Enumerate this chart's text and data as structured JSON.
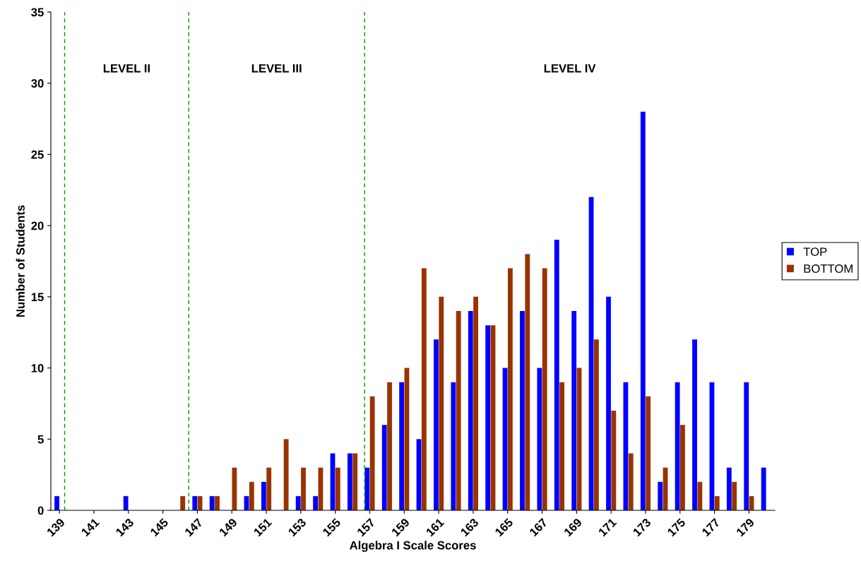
{
  "chart_data": {
    "type": "bar",
    "xlabel": "Algebra I Scale Scores",
    "ylabel": "Number of Students",
    "x": [
      139,
      140,
      141,
      142,
      143,
      144,
      145,
      146,
      147,
      148,
      149,
      150,
      151,
      152,
      153,
      154,
      155,
      156,
      157,
      158,
      159,
      160,
      161,
      162,
      163,
      164,
      165,
      166,
      167,
      168,
      169,
      170,
      171,
      172,
      173,
      174,
      175,
      176,
      177,
      178,
      179,
      180
    ],
    "series": [
      {
        "name": "TOP",
        "color": "#0000ff",
        "values": [
          1,
          0,
          0,
          0,
          1,
          0,
          0,
          0,
          1,
          1,
          0,
          1,
          2,
          0,
          1,
          1,
          4,
          4,
          3,
          6,
          9,
          5,
          12,
          9,
          14,
          13,
          10,
          14,
          10,
          19,
          14,
          22,
          15,
          9,
          28,
          2,
          9,
          12,
          9,
          3,
          9,
          3
        ]
      },
      {
        "name": "BOTTOM",
        "color": "#993300",
        "values": [
          0,
          0,
          0,
          0,
          0,
          0,
          0,
          1,
          1,
          1,
          3,
          2,
          3,
          5,
          3,
          3,
          3,
          4,
          8,
          9,
          10,
          17,
          15,
          14,
          15,
          13,
          17,
          18,
          17,
          9,
          10,
          12,
          7,
          4,
          8,
          3,
          6,
          2,
          1,
          2,
          1,
          0
        ]
      }
    ],
    "xlim": [
      138.5,
      180.5
    ],
    "xticks": [
      139,
      141,
      143,
      145,
      147,
      149,
      151,
      153,
      155,
      157,
      159,
      161,
      163,
      165,
      167,
      169,
      171,
      173,
      175,
      177,
      179
    ],
    "ylim": [
      0,
      35
    ],
    "yticks": [
      0,
      5,
      10,
      15,
      20,
      25,
      30,
      35
    ],
    "ref_lines": [
      {
        "axis": "x",
        "value": 139.3,
        "color": "#009900",
        "line_style": "dashed"
      },
      {
        "axis": "x",
        "value": 146.5,
        "color": "#009900",
        "line_style": "dashed"
      },
      {
        "axis": "x",
        "value": 156.7,
        "color": "#009900",
        "line_style": "dashed"
      }
    ],
    "annotations": [
      "LEVEL II",
      "LEVEL III",
      "LEVEL IV"
    ],
    "grid": false,
    "legend": "right"
  }
}
